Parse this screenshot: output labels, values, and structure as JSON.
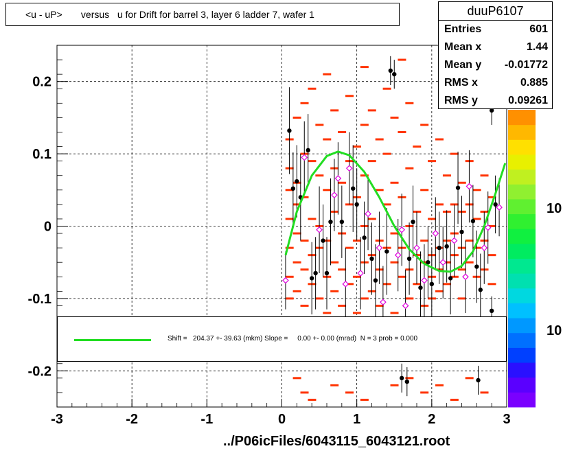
{
  "title": "<u - uP>       versus   u for Drift for barrel 3, layer 6 ladder 7, wafer 1",
  "stats": {
    "name": "duuP6107",
    "rows": [
      {
        "label": "Entries",
        "value": "601"
      },
      {
        "label": "Mean x",
        "value": "1.44"
      },
      {
        "label": "Mean y",
        "value": "-0.01772"
      },
      {
        "label": "RMS x",
        "value": "0.885"
      },
      {
        "label": "RMS y",
        "value": "0.09261"
      }
    ]
  },
  "fit_legend": "Shift =   204.37 +- 39.63 (mkm) Slope =     0.00 +- 0.00 (mrad)  N = 3 prob = 0.000",
  "footer": "../P06icFiles/6043115_6043121.root",
  "colors": {
    "fit": "#22dd22",
    "cells": "#ff3300",
    "profile_black": "#000000",
    "profile_magenta": "#dd00dd"
  },
  "chart_data": {
    "type": "heatmap",
    "xlim": [
      -3,
      3
    ],
    "ylim": [
      -0.25,
      0.25
    ],
    "x_ticks": [
      "-3",
      "-2",
      "-1",
      "0",
      "1",
      "2",
      "3"
    ],
    "y_ticks": [
      "-0.2",
      "-0.1",
      "0",
      "0.1",
      "0.2"
    ],
    "grid": true,
    "color_scale_labels": [
      "10",
      "10"
    ],
    "heatmap_cells": [
      [
        0.02,
        0.12
      ],
      [
        0.02,
        0.08
      ],
      [
        0.02,
        0.05
      ],
      [
        0.02,
        0.01
      ],
      [
        0.02,
        -0.03
      ],
      [
        0.02,
        -0.07
      ],
      [
        0.02,
        -0.1
      ],
      [
        0.12,
        0.15
      ],
      [
        0.12,
        0.06
      ],
      [
        0.12,
        0.03
      ],
      [
        0.12,
        -0.01
      ],
      [
        0.12,
        -0.05
      ],
      [
        0.12,
        -0.09
      ],
      [
        0.22,
        0.17
      ],
      [
        0.22,
        0.1
      ],
      [
        0.22,
        0.04
      ],
      [
        0.22,
        -0.02
      ],
      [
        0.22,
        -0.06
      ],
      [
        0.22,
        -0.11
      ],
      [
        0.32,
        0.19
      ],
      [
        0.32,
        0.09
      ],
      [
        0.32,
        0.01
      ],
      [
        0.32,
        -0.04
      ],
      [
        0.32,
        -0.08
      ],
      [
        0.42,
        0.14
      ],
      [
        0.42,
        0.07
      ],
      [
        0.42,
        0.0
      ],
      [
        0.42,
        -0.03
      ],
      [
        0.42,
        -0.1
      ],
      [
        0.52,
        0.21
      ],
      [
        0.52,
        0.12
      ],
      [
        0.52,
        0.05
      ],
      [
        0.52,
        -0.02
      ],
      [
        0.52,
        -0.07
      ],
      [
        0.52,
        -0.12
      ],
      [
        0.62,
        0.16
      ],
      [
        0.62,
        0.08
      ],
      [
        0.62,
        0.02
      ],
      [
        0.62,
        -0.05
      ],
      [
        0.62,
        -0.09
      ],
      [
        0.72,
        0.13
      ],
      [
        0.72,
        0.06
      ],
      [
        0.72,
        -0.01
      ],
      [
        0.72,
        -0.06
      ],
      [
        0.72,
        -0.11
      ],
      [
        0.82,
        0.18
      ],
      [
        0.82,
        0.09
      ],
      [
        0.82,
        0.03
      ],
      [
        0.82,
        -0.03
      ],
      [
        0.82,
        -0.08
      ],
      [
        0.92,
        0.11
      ],
      [
        0.92,
        0.04
      ],
      [
        0.92,
        -0.02
      ],
      [
        0.92,
        -0.07
      ],
      [
        0.92,
        -0.12
      ],
      [
        1.02,
        0.22
      ],
      [
        1.02,
        0.14
      ],
      [
        1.02,
        0.07
      ],
      [
        1.02,
        0.0
      ],
      [
        1.02,
        -0.05
      ],
      [
        1.02,
        -0.1
      ],
      [
        1.12,
        0.16
      ],
      [
        1.12,
        0.09
      ],
      [
        1.12,
        0.01
      ],
      [
        1.12,
        -0.04
      ],
      [
        1.12,
        -0.09
      ],
      [
        1.22,
        0.12
      ],
      [
        1.22,
        0.05
      ],
      [
        1.22,
        -0.02
      ],
      [
        1.22,
        -0.06
      ],
      [
        1.22,
        -0.11
      ],
      [
        1.32,
        0.19
      ],
      [
        1.32,
        0.1
      ],
      [
        1.32,
        0.03
      ],
      [
        1.32,
        -0.03
      ],
      [
        1.32,
        -0.08
      ],
      [
        1.42,
        0.15
      ],
      [
        1.42,
        0.06
      ],
      [
        1.42,
        -0.01
      ],
      [
        1.42,
        -0.05
      ],
      [
        1.42,
        -0.12
      ],
      [
        1.52,
        0.23
      ],
      [
        1.52,
        0.13
      ],
      [
        1.52,
        0.04
      ],
      [
        1.52,
        -0.03
      ],
      [
        1.52,
        -0.07
      ],
      [
        1.62,
        0.17
      ],
      [
        1.62,
        0.08
      ],
      [
        1.62,
        0.0
      ],
      [
        1.62,
        -0.06
      ],
      [
        1.62,
        -0.1
      ],
      [
        1.72,
        0.11
      ],
      [
        1.72,
        0.02
      ],
      [
        1.72,
        -0.04
      ],
      [
        1.72,
        -0.08
      ],
      [
        1.82,
        0.14
      ],
      [
        1.82,
        0.05
      ],
      [
        1.82,
        -0.02
      ],
      [
        1.82,
        -0.05
      ],
      [
        1.82,
        -0.11
      ],
      [
        1.92,
        0.09
      ],
      [
        1.92,
        0.01
      ],
      [
        1.92,
        -0.04
      ],
      [
        1.92,
        -0.07
      ],
      [
        1.92,
        -0.1
      ],
      [
        2.02,
        0.12
      ],
      [
        2.02,
        0.03
      ],
      [
        2.02,
        -0.03
      ],
      [
        2.02,
        -0.06
      ],
      [
        2.02,
        -0.09
      ],
      [
        2.12,
        0.07
      ],
      [
        2.12,
        0.02
      ],
      [
        2.12,
        -0.02
      ],
      [
        2.12,
        -0.05
      ],
      [
        2.12,
        -0.08
      ],
      [
        2.22,
        0.1
      ],
      [
        2.22,
        0.03
      ],
      [
        2.22,
        -0.01
      ],
      [
        2.22,
        -0.04
      ],
      [
        2.22,
        -0.07
      ],
      [
        2.32,
        0.06
      ],
      [
        2.32,
        0.02
      ],
      [
        2.32,
        -0.03
      ],
      [
        2.32,
        -0.06
      ],
      [
        2.32,
        -0.1
      ],
      [
        2.42,
        0.09
      ],
      [
        2.42,
        0.03
      ],
      [
        2.42,
        -0.02
      ],
      [
        2.42,
        -0.05
      ],
      [
        2.52,
        0.05
      ],
      [
        2.52,
        0.01
      ],
      [
        2.52,
        -0.03
      ],
      [
        2.52,
        -0.07
      ],
      [
        2.62,
        0.07
      ],
      [
        2.62,
        0.02
      ],
      [
        2.62,
        -0.02
      ],
      [
        2.62,
        -0.06
      ],
      [
        2.72,
        0.04
      ],
      [
        2.72,
        0.0
      ],
      [
        2.72,
        -0.04
      ],
      [
        2.72,
        -0.08
      ],
      [
        0.12,
        -0.21
      ],
      [
        0.22,
        -0.23
      ],
      [
        0.32,
        -0.24
      ],
      [
        0.62,
        -0.22
      ],
      [
        0.82,
        -0.23
      ],
      [
        1.02,
        -0.24
      ],
      [
        1.42,
        -0.22
      ],
      [
        1.62,
        -0.21
      ],
      [
        1.82,
        -0.23
      ],
      [
        2.02,
        -0.22
      ],
      [
        2.22,
        -0.24
      ],
      [
        2.42,
        -0.21
      ],
      [
        2.62,
        -0.23
      ]
    ],
    "profile_points": [
      {
        "x": 0.05,
        "y": -0.075,
        "err": 0.04,
        "marker": "magenta"
      },
      {
        "x": 0.1,
        "y": 0.132,
        "err": 0.06,
        "marker": "black"
      },
      {
        "x": 0.15,
        "y": 0.052,
        "err": 0.05,
        "marker": "black"
      },
      {
        "x": 0.2,
        "y": 0.062,
        "err": 0.05,
        "marker": "black"
      },
      {
        "x": 0.25,
        "y": 0.04,
        "err": 0.06,
        "marker": "black"
      },
      {
        "x": 0.3,
        "y": 0.095,
        "err": 0.05,
        "marker": "magenta"
      },
      {
        "x": 0.35,
        "y": 0.105,
        "err": 0.05,
        "marker": "black"
      },
      {
        "x": 0.4,
        "y": -0.072,
        "err": 0.05,
        "marker": "black"
      },
      {
        "x": 0.45,
        "y": -0.065,
        "err": 0.05,
        "marker": "black"
      },
      {
        "x": 0.5,
        "y": -0.005,
        "err": 0.06,
        "marker": "magenta"
      },
      {
        "x": 0.55,
        "y": -0.02,
        "err": 0.05,
        "marker": "black"
      },
      {
        "x": 0.6,
        "y": -0.065,
        "err": 0.05,
        "marker": "black"
      },
      {
        "x": 0.65,
        "y": 0.006,
        "err": 0.06,
        "marker": "black"
      },
      {
        "x": 0.7,
        "y": 0.043,
        "err": 0.05,
        "marker": "magenta"
      },
      {
        "x": 0.75,
        "y": 0.066,
        "err": 0.05,
        "marker": "magenta"
      },
      {
        "x": 0.8,
        "y": 0.006,
        "err": 0.05,
        "marker": "black"
      },
      {
        "x": 0.85,
        "y": -0.08,
        "err": 0.05,
        "marker": "magenta"
      },
      {
        "x": 0.9,
        "y": 0.08,
        "err": 0.05,
        "marker": "magenta"
      },
      {
        "x": 0.95,
        "y": 0.052,
        "err": 0.06,
        "marker": "black"
      },
      {
        "x": 1.0,
        "y": 0.03,
        "err": 0.05,
        "marker": "black"
      },
      {
        "x": 1.05,
        "y": -0.065,
        "err": 0.05,
        "marker": "magenta"
      },
      {
        "x": 1.1,
        "y": -0.016,
        "err": 0.05,
        "marker": "black"
      },
      {
        "x": 1.15,
        "y": 0.017,
        "err": 0.05,
        "marker": "magenta"
      },
      {
        "x": 1.2,
        "y": -0.045,
        "err": 0.05,
        "marker": "black"
      },
      {
        "x": 1.25,
        "y": -0.075,
        "err": 0.05,
        "marker": "black"
      },
      {
        "x": 1.3,
        "y": -0.03,
        "err": 0.05,
        "marker": "magenta"
      },
      {
        "x": 1.35,
        "y": -0.105,
        "err": 0.05,
        "marker": "magenta"
      },
      {
        "x": 1.4,
        "y": -0.035,
        "err": 0.06,
        "marker": "black"
      },
      {
        "x": 1.45,
        "y": 0.215,
        "err": 0.02,
        "marker": "black"
      },
      {
        "x": 1.5,
        "y": 0.21,
        "err": 0.02,
        "marker": "black"
      },
      {
        "x": 1.55,
        "y": -0.04,
        "err": 0.05,
        "marker": "magenta"
      },
      {
        "x": 1.6,
        "y": -0.005,
        "err": 0.05,
        "marker": "magenta"
      },
      {
        "x": 1.65,
        "y": -0.11,
        "err": 0.05,
        "marker": "magenta"
      },
      {
        "x": 1.7,
        "y": -0.045,
        "err": 0.05,
        "marker": "black"
      },
      {
        "x": 1.75,
        "y": 0.006,
        "err": 0.05,
        "marker": "black"
      },
      {
        "x": 1.8,
        "y": -0.03,
        "err": 0.05,
        "marker": "magenta"
      },
      {
        "x": 1.85,
        "y": -0.085,
        "err": 0.05,
        "marker": "black"
      },
      {
        "x": 1.9,
        "y": -0.075,
        "err": 0.05,
        "marker": "magenta"
      },
      {
        "x": 1.95,
        "y": -0.05,
        "err": 0.05,
        "marker": "black"
      },
      {
        "x": 2.0,
        "y": -0.08,
        "err": 0.05,
        "marker": "black"
      },
      {
        "x": 2.05,
        "y": -0.01,
        "err": 0.05,
        "marker": "magenta"
      },
      {
        "x": 2.1,
        "y": -0.03,
        "err": 0.05,
        "marker": "black"
      },
      {
        "x": 2.15,
        "y": -0.05,
        "err": 0.05,
        "marker": "magenta"
      },
      {
        "x": 2.2,
        "y": -0.028,
        "err": 0.05,
        "marker": "black"
      },
      {
        "x": 2.25,
        "y": -0.072,
        "err": 0.05,
        "marker": "black"
      },
      {
        "x": 2.3,
        "y": -0.02,
        "err": 0.05,
        "marker": "magenta"
      },
      {
        "x": 2.35,
        "y": 0.053,
        "err": 0.05,
        "marker": "black"
      },
      {
        "x": 2.4,
        "y": -0.008,
        "err": 0.05,
        "marker": "black"
      },
      {
        "x": 2.45,
        "y": -0.07,
        "err": 0.05,
        "marker": "magenta"
      },
      {
        "x": 2.5,
        "y": 0.055,
        "err": 0.05,
        "marker": "magenta"
      },
      {
        "x": 2.55,
        "y": 0.007,
        "err": 0.05,
        "marker": "black"
      },
      {
        "x": 2.6,
        "y": -0.056,
        "err": 0.05,
        "marker": "black"
      },
      {
        "x": 2.65,
        "y": -0.088,
        "err": 0.05,
        "marker": "black"
      },
      {
        "x": 2.7,
        "y": -0.03,
        "err": 0.05,
        "marker": "magenta"
      },
      {
        "x": 2.75,
        "y": -0.002,
        "err": 0.05,
        "marker": "magenta"
      },
      {
        "x": 2.8,
        "y": 0.16,
        "err": 0.02,
        "marker": "black"
      },
      {
        "x": 2.85,
        "y": 0.03,
        "err": 0.04,
        "marker": "black"
      },
      {
        "x": 2.9,
        "y": 0.026,
        "err": 0.04,
        "marker": "magenta"
      },
      {
        "x": 2.72,
        "y": 0.224,
        "err": 0.02,
        "marker": "black"
      },
      {
        "x": 1.6,
        "y": -0.21,
        "err": 0.02,
        "marker": "black"
      },
      {
        "x": 1.67,
        "y": -0.215,
        "err": 0.02,
        "marker": "black"
      },
      {
        "x": 2.62,
        "y": -0.213,
        "err": 0.02,
        "marker": "black"
      },
      {
        "x": 2.8,
        "y": -0.117,
        "err": 0.02,
        "marker": "black"
      }
    ],
    "fit_curve": [
      [
        0.05,
        -0.04
      ],
      [
        0.2,
        0.02
      ],
      [
        0.4,
        0.07
      ],
      [
        0.6,
        0.097
      ],
      [
        0.75,
        0.103
      ],
      [
        0.9,
        0.098
      ],
      [
        1.1,
        0.075
      ],
      [
        1.3,
        0.04
      ],
      [
        1.5,
        0.0
      ],
      [
        1.7,
        -0.032
      ],
      [
        1.9,
        -0.052
      ],
      [
        2.1,
        -0.062
      ],
      [
        2.25,
        -0.063
      ],
      [
        2.4,
        -0.055
      ],
      [
        2.55,
        -0.035
      ],
      [
        2.7,
        0.0
      ],
      [
        2.85,
        0.045
      ],
      [
        2.98,
        0.087
      ]
    ]
  }
}
